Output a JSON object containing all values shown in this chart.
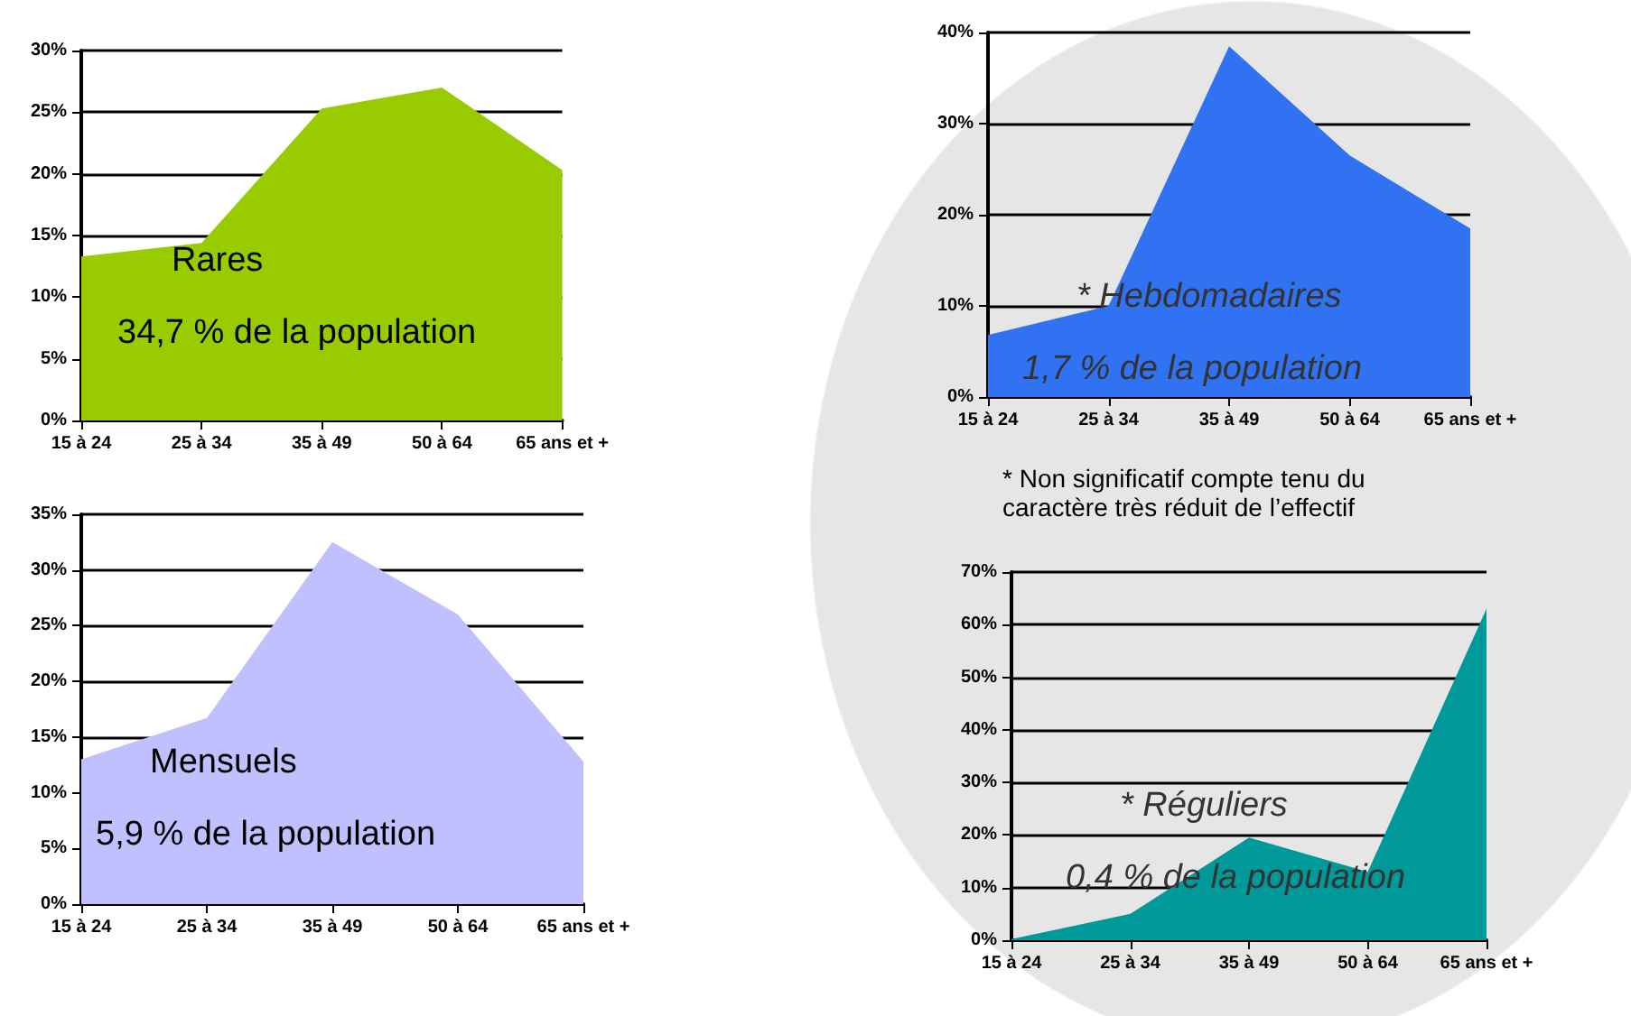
{
  "chart_data": [
    {
      "type": "area",
      "title": "Rares",
      "subtitle": "34,7 % de la population",
      "categories": [
        "15 à 24",
        "25 à 34",
        "35 à 49",
        "50 à 64",
        "65 ans et +"
      ],
      "values": [
        13.3,
        14.4,
        25.3,
        27,
        20.3
      ],
      "color": "#99cc00",
      "ylim": [
        0,
        30
      ],
      "yticks": [
        {
          "value": 0,
          "label": "0%"
        },
        {
          "value": 5,
          "label": "5%"
        },
        {
          "value": 10,
          "label": "10%"
        },
        {
          "value": 15,
          "label": "15%"
        },
        {
          "value": 20,
          "label": "20%"
        },
        {
          "value": 25,
          "label": "25%"
        },
        {
          "value": 30,
          "label": "30%"
        }
      ],
      "grid": "y",
      "marker": "none"
    },
    {
      "type": "area",
      "title": "* Hebdomadaires",
      "subtitle": "1,7 % de la population",
      "annotations": [
        "* Non significatif compte tenu du caractère très réduit de l’effectif"
      ],
      "categories": [
        "15 à 24",
        "25 à 34",
        "35 à 49",
        "50 à 64",
        "65 ans et +"
      ],
      "values": [
        6.8,
        10,
        38.5,
        26.5,
        18.5
      ],
      "color": "#3072f2",
      "ylim": [
        0,
        40
      ],
      "yticks": [
        {
          "value": 0,
          "label": "0%"
        },
        {
          "value": 10,
          "label": "10%"
        },
        {
          "value": 20,
          "label": "20%"
        },
        {
          "value": 30,
          "label": "30%"
        },
        {
          "value": 40,
          "label": "40%"
        }
      ],
      "grid": "y",
      "marker": "none"
    },
    {
      "type": "area",
      "title": "Mensuels",
      "subtitle": "5,9 % de la population",
      "categories": [
        "15 à 24",
        "25 à 34",
        "35 à 49",
        "50 à 64",
        "65 ans et +"
      ],
      "values": [
        13,
        16.7,
        32.5,
        26,
        12.8
      ],
      "color": "#c0c0ff",
      "ylim": [
        0,
        35
      ],
      "yticks": [
        {
          "value": 0,
          "label": "0%"
        },
        {
          "value": 5,
          "label": "5%"
        },
        {
          "value": 10,
          "label": "10%"
        },
        {
          "value": 15,
          "label": "15%"
        },
        {
          "value": 20,
          "label": "20%"
        },
        {
          "value": 25,
          "label": "25%"
        },
        {
          "value": 30,
          "label": "30%"
        },
        {
          "value": 35,
          "label": "35%"
        }
      ],
      "grid": "y",
      "marker": "none"
    },
    {
      "type": "area",
      "title": "* Réguliers",
      "subtitle": "0,4 % de la population",
      "categories": [
        "15 à 24",
        "25 à 34",
        "35 à 49",
        "50 à 64",
        "65 ans et +"
      ],
      "values": [
        0.2,
        5,
        19.5,
        13,
        63
      ],
      "color": "#009999",
      "ylim": [
        0,
        70
      ],
      "yticks": [
        {
          "value": 0,
          "label": "0%"
        },
        {
          "value": 10,
          "label": "10%"
        },
        {
          "value": 20,
          "label": "20%"
        },
        {
          "value": 30,
          "label": "30%"
        },
        {
          "value": 40,
          "label": "40%"
        },
        {
          "value": 50,
          "label": "50%"
        },
        {
          "value": 60,
          "label": "60%"
        },
        {
          "value": 70,
          "label": "70%"
        }
      ],
      "grid": "y",
      "marker": "none"
    }
  ]
}
